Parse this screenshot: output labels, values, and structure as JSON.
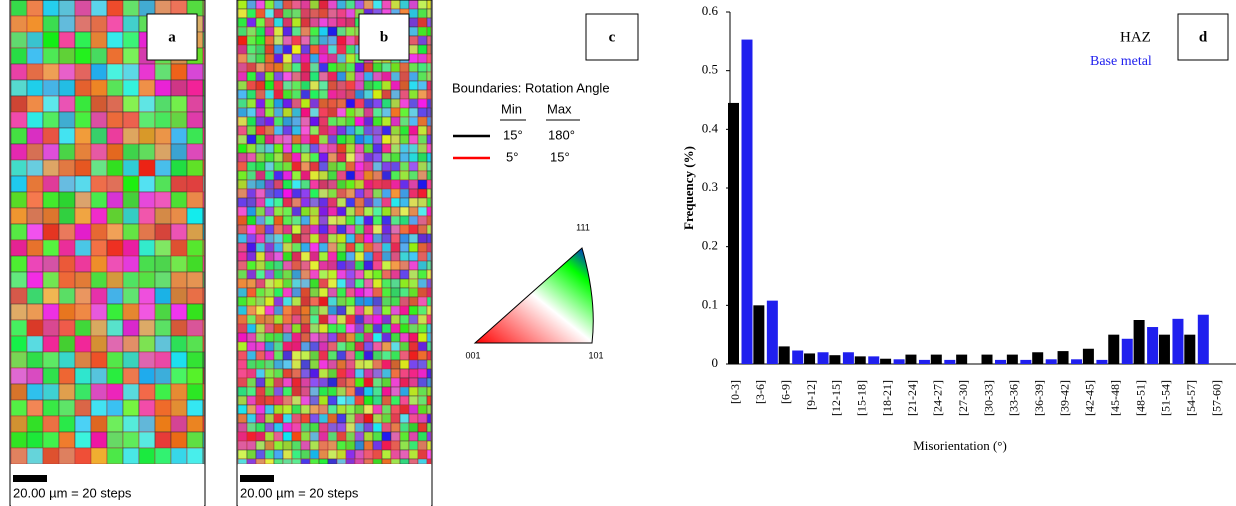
{
  "panels": [
    {
      "label": "a",
      "scale": "20.00 µm = 20 steps"
    },
    {
      "label": "b",
      "scale": "20.00 µm = 20 steps"
    }
  ],
  "key": {
    "label": "c",
    "title": "Boundaries: Rotation Angle",
    "headers": [
      "Min",
      "Max"
    ],
    "rows": [
      [
        "15°",
        "180°"
      ],
      [
        "5°",
        "15°"
      ]
    ],
    "triangle": [
      "111",
      "001",
      "101"
    ]
  },
  "chart_data": {
    "type": "bar",
    "panel_label": "d",
    "xlabel": "Misorientation (°)",
    "ylabel": "Frequency (%)",
    "categories": [
      "[0-3]",
      "[3-6]",
      "[6-9]",
      "[9-12]",
      "[12-15]",
      "[15-18]",
      "[18-21]",
      "[21-24]",
      "[24-27]",
      "[27-30]",
      "[30-33]",
      "[33-36]",
      "[36-39]",
      "[39-42]",
      "[42-45]",
      "[45-48]",
      "[48-51]",
      "[51-54]",
      "[54-57]",
      "[57-60]"
    ],
    "series": [
      {
        "name": "HAZ",
        "color": "#000000",
        "values": [
          0.445,
          0.1,
          0.03,
          0.018,
          0.015,
          0.013,
          0.009,
          0.016,
          0.016,
          0.016,
          0.016,
          0.016,
          0.02,
          0.022,
          0.026,
          0.05,
          0.075,
          0.05,
          0.05,
          null
        ]
      },
      {
        "name": "Base metal",
        "color": "#1f1fee",
        "values": [
          0.553,
          0.108,
          0.023,
          0.02,
          0.02,
          0.013,
          0.008,
          0.007,
          0.007,
          null,
          0.007,
          0.007,
          0.008,
          0.008,
          0.007,
          0.043,
          0.063,
          0.077,
          0.084,
          null
        ]
      }
    ],
    "ylim": [
      0,
      0.6
    ],
    "yticks": [
      0,
      0.1,
      0.2,
      0.3,
      0.4,
      0.5,
      0.6
    ],
    "legend": "upper right"
  }
}
